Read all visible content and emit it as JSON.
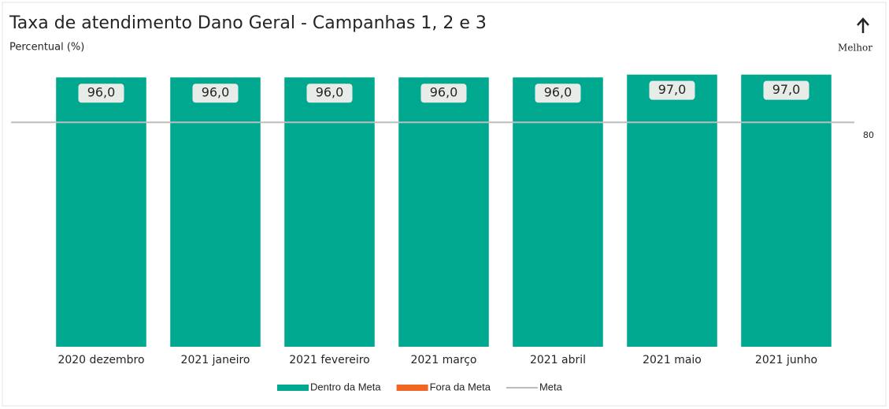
{
  "chart_data": {
    "type": "bar",
    "title": "Taxa de atendimento Dano Geral - Campanhas 1, 2 e 3",
    "subtitle": "Percentual (%)",
    "annotation": "Melhor",
    "categories": [
      "2020 dezembro",
      "2021 janeiro",
      "2021 fevereiro",
      "2021 março",
      "2021 abril",
      "2021 maio",
      "2021 junho"
    ],
    "series": [
      {
        "name": "Dentro da Meta",
        "color": "#00a88f",
        "values": [
          96,
          96,
          96,
          96,
          96,
          97,
          97
        ],
        "value_labels": [
          "96,0",
          "96,0",
          "96,0",
          "96,0",
          "96,0",
          "97,0",
          "97,0"
        ]
      },
      {
        "name": "Fora da Meta",
        "color": "#f26522",
        "values": [
          null,
          null,
          null,
          null,
          null,
          null,
          null
        ]
      }
    ],
    "meta": {
      "name": "Meta",
      "color": "#bdbdbd",
      "value": 80
    },
    "ylim": [
      0,
      100
    ]
  }
}
